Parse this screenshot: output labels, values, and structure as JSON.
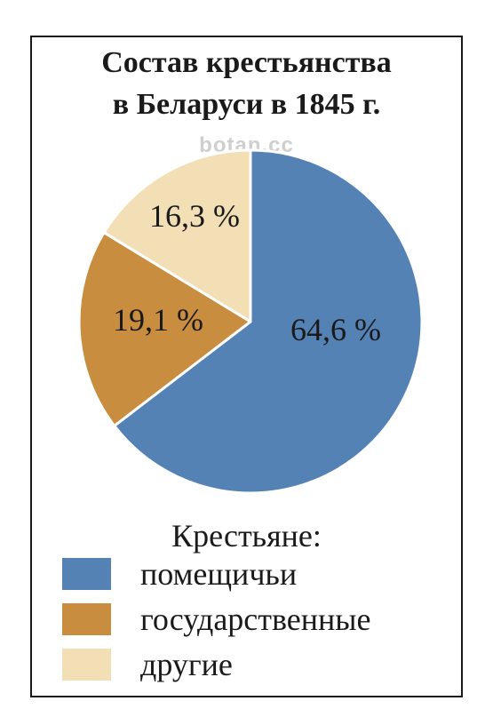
{
  "chart_data": {
    "type": "pie",
    "title_lines": [
      "Состав крестьянства",
      "в Беларуси в 1845 г."
    ],
    "legend_title": "Крестьяне:",
    "watermark": "botan.cc",
    "slices": [
      {
        "label": "помещичьи",
        "value": 64.6,
        "value_label": "64,6 %",
        "color": "#5582b4"
      },
      {
        "label": "государственные",
        "value": 19.1,
        "value_label": "19,1 %",
        "color": "#c98d40"
      },
      {
        "label": "другие",
        "value": 16.3,
        "value_label": "16,3 %",
        "color": "#f2dfb6"
      }
    ]
  }
}
